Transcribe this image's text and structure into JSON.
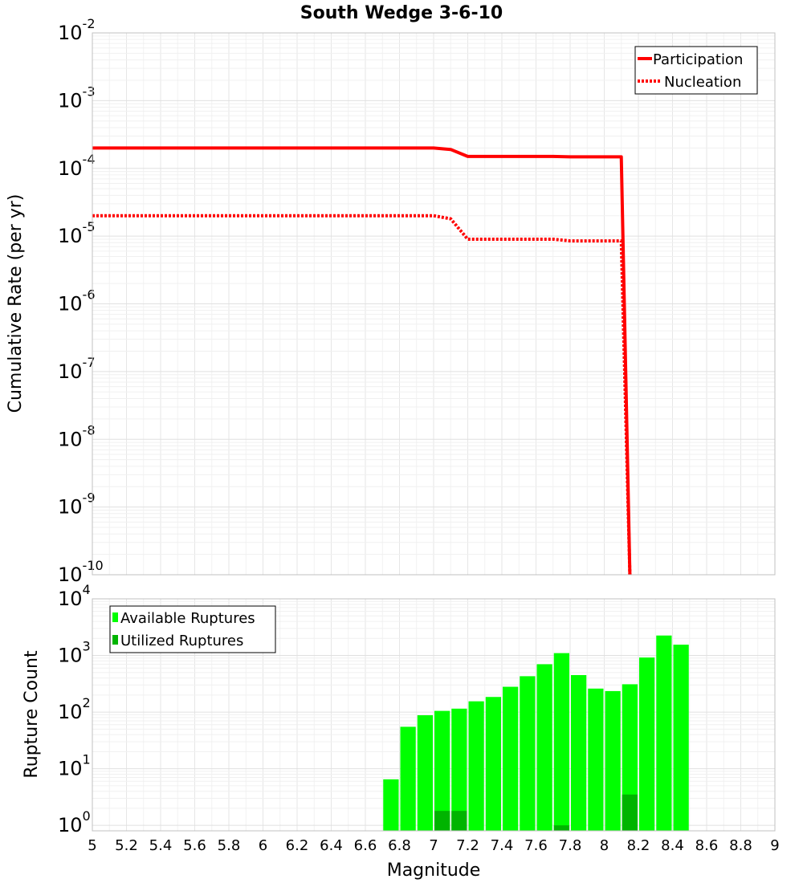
{
  "chart_data": [
    {
      "type": "line",
      "title": "South Wedge 3-6-10",
      "xlabel": "",
      "ylabel": "Cumulative Rate (per yr)",
      "yscale": "log",
      "xlim": [
        5,
        9
      ],
      "ylim": [
        1e-10,
        0.01
      ],
      "yticks": [
        {
          "base": "10",
          "exp": "-2",
          "value": 0.01
        },
        {
          "base": "10",
          "exp": "-3",
          "value": 0.001
        },
        {
          "base": "10",
          "exp": "-4",
          "value": 0.0001
        },
        {
          "base": "10",
          "exp": "-5",
          "value": 1e-05
        },
        {
          "base": "10",
          "exp": "-6",
          "value": 1e-06
        },
        {
          "base": "10",
          "exp": "-7",
          "value": 1e-07
        },
        {
          "base": "10",
          "exp": "-8",
          "value": 1e-08
        },
        {
          "base": "10",
          "exp": "-9",
          "value": 1e-09
        },
        {
          "base": "10",
          "exp": "-10",
          "value": 1e-10
        }
      ],
      "grid": true,
      "legend": "top-right",
      "series": [
        {
          "name": "Participation",
          "color": "#ff0000",
          "style": "solid",
          "x": [
            5.0,
            7.0,
            7.1,
            7.2,
            7.7,
            7.8,
            8.1,
            8.15
          ],
          "y": [
            0.0002,
            0.0002,
            0.00019,
            0.00015,
            0.00015,
            0.000148,
            0.000148,
            1e-10
          ]
        },
        {
          "name": "Nucleation",
          "color": "#ff0000",
          "style": "dotted",
          "x": [
            5.0,
            7.0,
            7.1,
            7.2,
            7.7,
            7.8,
            8.1,
            8.15
          ],
          "y": [
            2e-05,
            2e-05,
            1.8e-05,
            9e-06,
            9e-06,
            8.5e-06,
            8.5e-06,
            1e-10
          ]
        }
      ]
    },
    {
      "type": "bar",
      "title": "",
      "xlabel": "Magnitude",
      "ylabel": "Rupture Count",
      "yscale": "log",
      "xlim": [
        5,
        9
      ],
      "ylim": [
        0.8,
        10000
      ],
      "xticks": [
        "5",
        "5.2",
        "5.4",
        "5.6",
        "5.8",
        "6",
        "6.2",
        "6.4",
        "6.6",
        "6.8",
        "7",
        "7.2",
        "7.4",
        "7.6",
        "7.8",
        "8",
        "8.2",
        "8.4",
        "8.6",
        "8.8",
        "9"
      ],
      "yticks": [
        {
          "base": "10",
          "exp": "0",
          "value": 1
        },
        {
          "base": "10",
          "exp": "1",
          "value": 10
        },
        {
          "base": "10",
          "exp": "2",
          "value": 100
        },
        {
          "base": "10",
          "exp": "3",
          "value": 1000
        },
        {
          "base": "10",
          "exp": "4",
          "value": 10000
        }
      ],
      "grid": true,
      "legend": "top-left",
      "bin_width": 0.1,
      "bin_centers": [
        6.75,
        6.85,
        6.95,
        7.05,
        7.15,
        7.25,
        7.35,
        7.45,
        7.55,
        7.65,
        7.75,
        7.85,
        7.95,
        8.05,
        8.15,
        8.25,
        8.35,
        8.45
      ],
      "series": [
        {
          "name": "Available Ruptures",
          "color": "#00ff00",
          "values": [
            6.5,
            55,
            88,
            105,
            115,
            155,
            185,
            280,
            430,
            700,
            1100,
            450,
            260,
            235,
            310,
            920,
            2250,
            1550
          ]
        },
        {
          "name": "Utilized Ruptures",
          "color": "#00b400",
          "values": [
            0,
            0,
            0,
            1.8,
            1.8,
            0,
            0,
            0,
            0,
            0,
            1,
            0,
            0,
            0,
            3.5,
            0,
            0,
            0
          ]
        }
      ]
    }
  ]
}
